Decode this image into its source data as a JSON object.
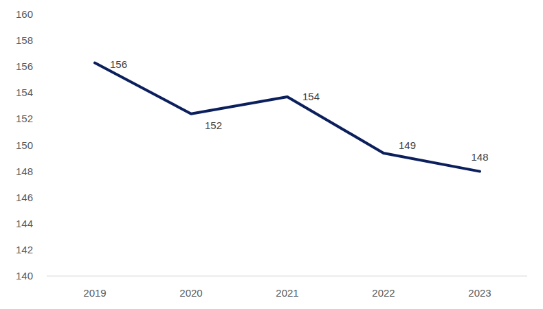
{
  "chart_data": {
    "type": "line",
    "categories": [
      "2019",
      "2020",
      "2021",
      "2022",
      "2023"
    ],
    "values": [
      156.3,
      152.4,
      153.7,
      149.4,
      148.0
    ],
    "value_labels": [
      "156",
      "152",
      "154",
      "149",
      "148"
    ],
    "color": "#0b1f5c",
    "ylim": [
      140,
      160
    ],
    "yticks": [
      140,
      142,
      144,
      146,
      148,
      150,
      152,
      154,
      156,
      158,
      160
    ],
    "grid": false,
    "data_labels": true
  }
}
